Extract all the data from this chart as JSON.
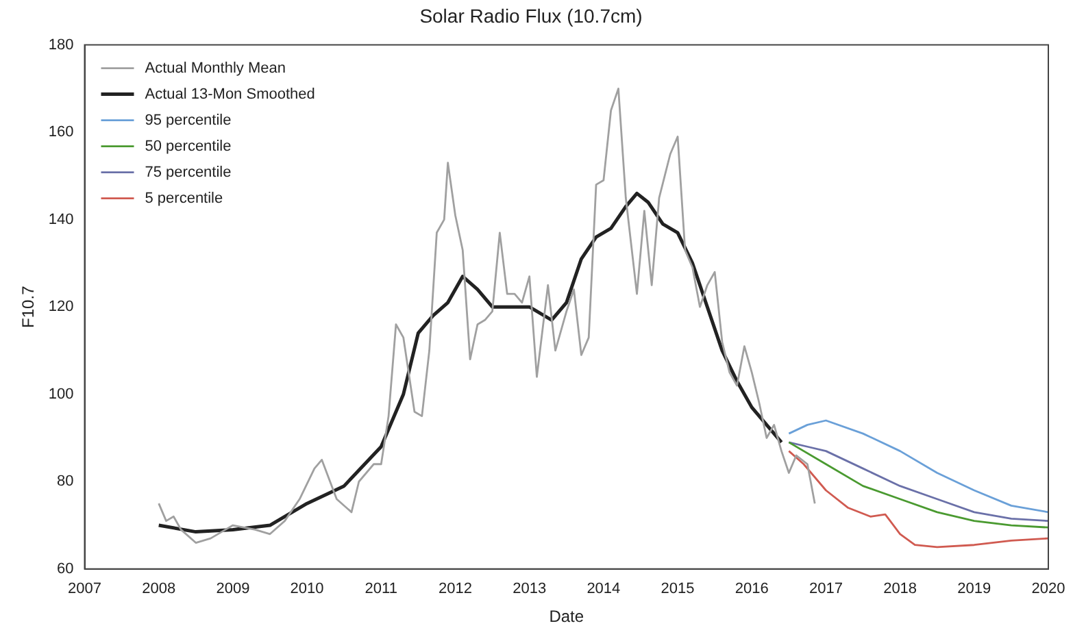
{
  "chart_data": {
    "type": "line",
    "title": "Solar Radio Flux (10.7cm)",
    "xlabel": "Date",
    "ylabel": "F10.7",
    "xlim": [
      2007,
      2020
    ],
    "xticks": [
      2007,
      2008,
      2009,
      2010,
      2011,
      2012,
      2013,
      2014,
      2015,
      2016,
      2017,
      2018,
      2019,
      2020
    ],
    "ylim": [
      60,
      180
    ],
    "yticks": [
      60,
      80,
      100,
      120,
      140,
      160,
      180
    ],
    "legend": "top left",
    "marker": "none",
    "line_style": "solid",
    "grid": false,
    "series": [
      {
        "name": "Actual Monthly Mean",
        "color": "#a0a0a0",
        "x": [
          2008.0,
          2008.1,
          2008.2,
          2008.3,
          2008.5,
          2008.7,
          2008.9,
          2009.0,
          2009.3,
          2009.5,
          2009.7,
          2009.9,
          2010.1,
          2010.2,
          2010.4,
          2010.6,
          2010.7,
          2010.9,
          2011.0,
          2011.1,
          2011.2,
          2011.3,
          2011.45,
          2011.55,
          2011.65,
          2011.75,
          2011.85,
          2011.9,
          2012.0,
          2012.1,
          2012.2,
          2012.3,
          2012.4,
          2012.5,
          2012.6,
          2012.7,
          2012.8,
          2012.9,
          2013.0,
          2013.1,
          2013.25,
          2013.35,
          2013.5,
          2013.6,
          2013.7,
          2013.8,
          2013.9,
          2014.0,
          2014.1,
          2014.2,
          2014.3,
          2014.45,
          2014.55,
          2014.65,
          2014.75,
          2014.9,
          2015.0,
          2015.1,
          2015.2,
          2015.3,
          2015.4,
          2015.5,
          2015.6,
          2015.7,
          2015.8,
          2015.9,
          2016.0,
          2016.1,
          2016.2,
          2016.3,
          2016.4,
          2016.5,
          2016.6,
          2016.75,
          2016.85
        ],
        "values": [
          75,
          71,
          72,
          69,
          66,
          67,
          69,
          70,
          69,
          68,
          71,
          76,
          83,
          85,
          76,
          73,
          80,
          84,
          84,
          95,
          116,
          113,
          96,
          95,
          110,
          137,
          140,
          153,
          141,
          133,
          108,
          116,
          117,
          119,
          137,
          123,
          123,
          121,
          127,
          104,
          125,
          110,
          119,
          124,
          109,
          113,
          148,
          149,
          165,
          170,
          145,
          123,
          142,
          125,
          145,
          155,
          159,
          133,
          129,
          120,
          125,
          128,
          112,
          105,
          102,
          111,
          105,
          98,
          90,
          93,
          87,
          82,
          86,
          84,
          75
        ]
      },
      {
        "name": "Actual 13-Mon Smoothed",
        "color": "#222222",
        "x": [
          2008.0,
          2008.5,
          2009.0,
          2009.5,
          2010.0,
          2010.5,
          2011.0,
          2011.3,
          2011.5,
          2011.7,
          2011.9,
          2012.1,
          2012.3,
          2012.5,
          2012.8,
          2013.0,
          2013.3,
          2013.5,
          2013.7,
          2013.9,
          2014.1,
          2014.3,
          2014.45,
          2014.6,
          2014.8,
          2015.0,
          2015.2,
          2015.4,
          2015.6,
          2015.8,
          2016.0,
          2016.2,
          2016.4
        ],
        "values": [
          70,
          68.5,
          69,
          70,
          75,
          79,
          88,
          100,
          114,
          118,
          121,
          127,
          124,
          120,
          120,
          120,
          117,
          121,
          131,
          136,
          138,
          143,
          146,
          144,
          139,
          137,
          130,
          120,
          110,
          103,
          97,
          93,
          89
        ]
      },
      {
        "name": "95 percentile",
        "color": "#6aa0d8",
        "x": [
          2016.5,
          2016.75,
          2017.0,
          2017.5,
          2018.0,
          2018.5,
          2019.0,
          2019.5,
          2020.0
        ],
        "values": [
          91,
          93,
          94,
          91,
          87,
          82,
          78,
          74.5,
          73
        ]
      },
      {
        "name": "50 percentile",
        "color": "#4a9a30",
        "x": [
          2016.5,
          2017.0,
          2017.5,
          2018.0,
          2018.5,
          2019.0,
          2019.5,
          2020.0
        ],
        "values": [
          89,
          84,
          79,
          76,
          73,
          71,
          70,
          69.5
        ]
      },
      {
        "name": "75 percentile",
        "color": "#6a70a8",
        "x": [
          2016.5,
          2016.75,
          2017.0,
          2017.5,
          2018.0,
          2018.5,
          2019.0,
          2019.5,
          2020.0
        ],
        "values": [
          89,
          88,
          87,
          83,
          79,
          76,
          73,
          71.5,
          71
        ]
      },
      {
        "name": "5 percentile",
        "color": "#d05a50",
        "x": [
          2016.5,
          2016.7,
          2017.0,
          2017.3,
          2017.6,
          2017.8,
          2018.0,
          2018.2,
          2018.5,
          2019.0,
          2019.5,
          2020.0
        ],
        "values": [
          87,
          84,
          78,
          74,
          72,
          72.5,
          68,
          65.5,
          65,
          65.5,
          66.5,
          67
        ]
      }
    ]
  }
}
